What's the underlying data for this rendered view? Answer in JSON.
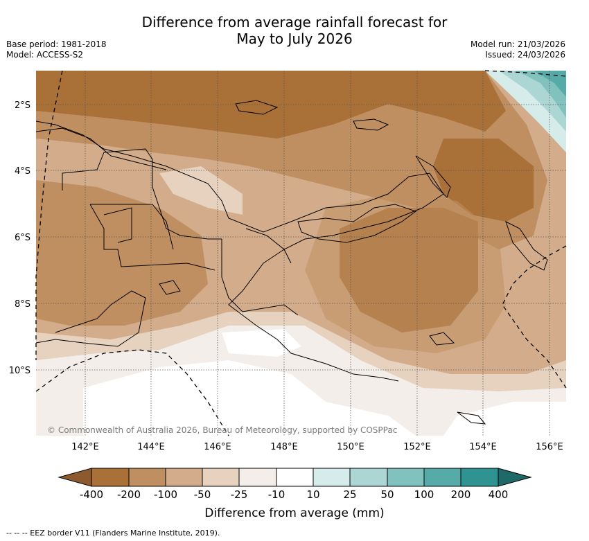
{
  "header": {
    "title_line1": "Difference from average rainfall forecast for",
    "title_line2": "May to July 2026",
    "base_period": "Base period: 1981-2018",
    "model": "Model: ACCESS-S2",
    "model_run": "Model run: 21/03/2026",
    "issued": "Issued: 24/03/2026"
  },
  "map": {
    "lat_labels": [
      "2°S",
      "4°S",
      "6°S",
      "8°S",
      "10°S"
    ],
    "lon_labels": [
      "142°E",
      "144°E",
      "146°E",
      "148°E",
      "150°E",
      "152°E",
      "154°E",
      "156°E"
    ],
    "copyright": "© Commonwealth of Australia 2026, Bureau of Meteorology, supported by COSPPac"
  },
  "colorbar": {
    "ticks": [
      "-400",
      "-200",
      "-100",
      "-50",
      "-25",
      "-10",
      "10",
      "25",
      "50",
      "100",
      "200",
      "400"
    ],
    "colors": [
      "#8c5a2e",
      "#a97038",
      "#bf8f62",
      "#d3ad8b",
      "#e6d2bf",
      "#f3eee9",
      "#ffffff",
      "#d6eceb",
      "#acd6d4",
      "#81c2bf",
      "#56aaa8",
      "#2f9391",
      "#1f6a68"
    ],
    "label": "Difference from average (mm)"
  },
  "footer": {
    "eez_note": "--  --  -- EEZ border V11 (Flanders Marine Institute, 2019)."
  }
}
